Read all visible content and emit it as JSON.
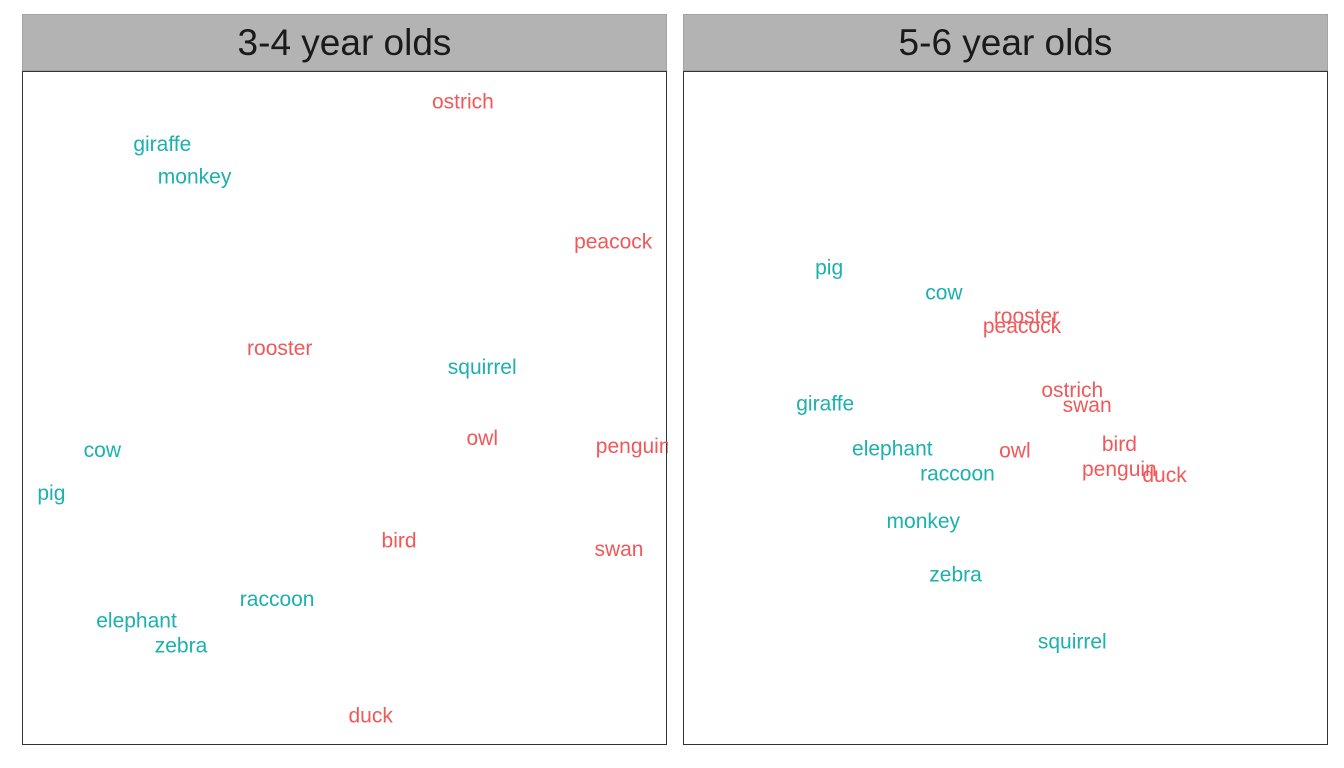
{
  "colors": {
    "bird_group": "#f0585a",
    "mammal_group": "#1cb0ae"
  },
  "chart_data": [
    {
      "type": "scatter",
      "title": "3-4 year olds",
      "xlim": [
        0,
        1
      ],
      "ylim": [
        0,
        1
      ],
      "grid": false,
      "points": [
        {
          "label": "ostrich",
          "x": 0.682,
          "y": 0.954,
          "group": "bird_group"
        },
        {
          "label": "giraffe",
          "x": 0.216,
          "y": 0.891,
          "group": "mammal_group"
        },
        {
          "label": "monkey",
          "x": 0.266,
          "y": 0.843,
          "group": "mammal_group"
        },
        {
          "label": "peacock",
          "x": 0.915,
          "y": 0.746,
          "group": "bird_group"
        },
        {
          "label": "rooster",
          "x": 0.398,
          "y": 0.588,
          "group": "bird_group"
        },
        {
          "label": "squirrel",
          "x": 0.712,
          "y": 0.56,
          "group": "mammal_group"
        },
        {
          "label": "owl",
          "x": 0.712,
          "y": 0.455,
          "group": "bird_group"
        },
        {
          "label": "penguin",
          "x": 0.946,
          "y": 0.443,
          "group": "bird_group"
        },
        {
          "label": "cow",
          "x": 0.123,
          "y": 0.437,
          "group": "mammal_group"
        },
        {
          "label": "pig",
          "x": 0.044,
          "y": 0.373,
          "group": "mammal_group"
        },
        {
          "label": "bird",
          "x": 0.583,
          "y": 0.303,
          "group": "bird_group"
        },
        {
          "label": "swan",
          "x": 0.924,
          "y": 0.29,
          "group": "bird_group"
        },
        {
          "label": "raccoon",
          "x": 0.394,
          "y": 0.216,
          "group": "mammal_group"
        },
        {
          "label": "elephant",
          "x": 0.176,
          "y": 0.184,
          "group": "mammal_group"
        },
        {
          "label": "zebra",
          "x": 0.245,
          "y": 0.147,
          "group": "mammal_group"
        },
        {
          "label": "duck",
          "x": 0.539,
          "y": 0.043,
          "group": "bird_group"
        }
      ]
    },
    {
      "type": "scatter",
      "title": "5-6 year olds",
      "xlim": [
        0,
        1
      ],
      "ylim": [
        0,
        1
      ],
      "grid": false,
      "points": [
        {
          "label": "pig",
          "x": 0.225,
          "y": 0.708,
          "group": "mammal_group"
        },
        {
          "label": "cow",
          "x": 0.403,
          "y": 0.671,
          "group": "mammal_group"
        },
        {
          "label": "rooster",
          "x": 0.531,
          "y": 0.636,
          "group": "bird_group"
        },
        {
          "label": "peacock",
          "x": 0.524,
          "y": 0.621,
          "group": "bird_group"
        },
        {
          "label": "giraffe",
          "x": 0.219,
          "y": 0.506,
          "group": "mammal_group"
        },
        {
          "label": "ostrich",
          "x": 0.602,
          "y": 0.526,
          "group": "bird_group"
        },
        {
          "label": "swan",
          "x": 0.625,
          "y": 0.504,
          "group": "bird_group"
        },
        {
          "label": "elephant",
          "x": 0.323,
          "y": 0.439,
          "group": "mammal_group"
        },
        {
          "label": "owl",
          "x": 0.513,
          "y": 0.436,
          "group": "bird_group"
        },
        {
          "label": "bird",
          "x": 0.675,
          "y": 0.446,
          "group": "bird_group"
        },
        {
          "label": "raccoon",
          "x": 0.424,
          "y": 0.402,
          "group": "mammal_group"
        },
        {
          "label": "penguin",
          "x": 0.675,
          "y": 0.409,
          "group": "bird_group"
        },
        {
          "label": "duck",
          "x": 0.745,
          "y": 0.4,
          "group": "bird_group"
        },
        {
          "label": "monkey",
          "x": 0.371,
          "y": 0.332,
          "group": "mammal_group"
        },
        {
          "label": "zebra",
          "x": 0.421,
          "y": 0.252,
          "group": "mammal_group"
        },
        {
          "label": "squirrel",
          "x": 0.602,
          "y": 0.153,
          "group": "mammal_group"
        }
      ]
    }
  ]
}
